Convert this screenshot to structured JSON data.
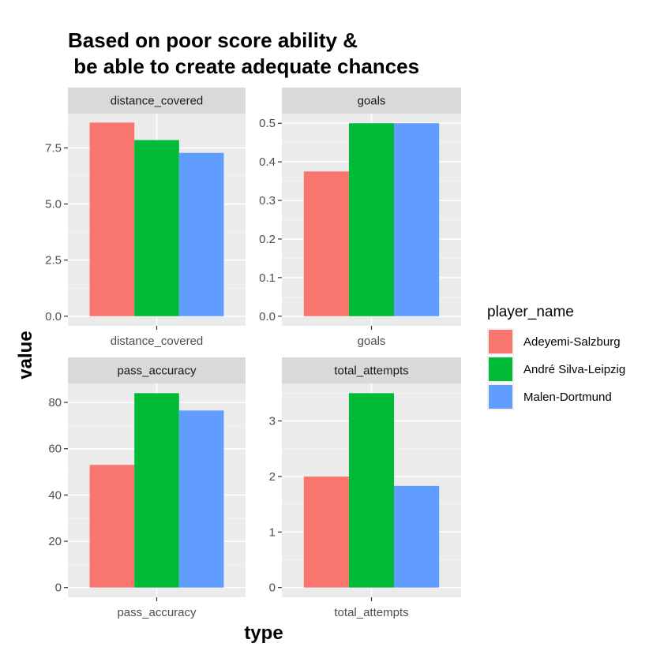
{
  "chart_data": {
    "type": "bar",
    "title_lines": [
      "Based on poor score ability &",
      " be able to create adequate chances"
    ],
    "xlabel": "type",
    "ylabel": "value",
    "legend": {
      "title": "player_name",
      "position": "right",
      "entries": [
        {
          "name": "Adeyemi-Salzburg",
          "color": "#F8766D"
        },
        {
          "name": "André Silva-Leipzig",
          "color": "#00BA38"
        },
        {
          "name": "Malen-Dortmund",
          "color": "#619CFF"
        }
      ]
    },
    "grid": true,
    "facets": [
      {
        "strip": "distance_covered",
        "category": "distance_covered",
        "ylim": [
          -0.43,
          9.03
        ],
        "yticks": [
          0,
          2.5,
          5,
          7.5
        ],
        "ytick_labels": [
          "0.0",
          "2.5",
          "5.0",
          "7.5"
        ],
        "series": [
          {
            "name": "Adeyemi-Salzburg",
            "value": 8.63
          },
          {
            "name": "André Silva-Leipzig",
            "value": 7.85
          },
          {
            "name": "Malen-Dortmund",
            "value": 7.28
          }
        ]
      },
      {
        "strip": "goals",
        "category": "goals",
        "ylim": [
          -0.025,
          0.525
        ],
        "yticks": [
          0,
          0.1,
          0.2,
          0.3,
          0.4,
          0.5
        ],
        "ytick_labels": [
          "0.0",
          "0.1",
          "0.2",
          "0.3",
          "0.4",
          "0.5"
        ],
        "series": [
          {
            "name": "Adeyemi-Salzburg",
            "value": 0.375
          },
          {
            "name": "André Silva-Leipzig",
            "value": 0.5
          },
          {
            "name": "Malen-Dortmund",
            "value": 0.5
          }
        ]
      },
      {
        "strip": "pass_accuracy",
        "category": "pass_accuracy",
        "ylim": [
          -4.2,
          88.2
        ],
        "yticks": [
          0,
          20,
          40,
          60,
          80
        ],
        "ytick_labels": [
          "0",
          "20",
          "40",
          "60",
          "80"
        ],
        "series": [
          {
            "name": "Adeyemi-Salzburg",
            "value": 53
          },
          {
            "name": "André Silva-Leipzig",
            "value": 84
          },
          {
            "name": "Malen-Dortmund",
            "value": 76.5
          }
        ]
      },
      {
        "strip": "total_attempts",
        "category": "total_attempts",
        "ylim": [
          -0.175,
          3.675
        ],
        "yticks": [
          0,
          1,
          2,
          3
        ],
        "ytick_labels": [
          "0",
          "1",
          "2",
          "3"
        ],
        "series": [
          {
            "name": "Adeyemi-Salzburg",
            "value": 2.0
          },
          {
            "name": "André Silva-Leipzig",
            "value": 3.5
          },
          {
            "name": "Malen-Dortmund",
            "value": 1.83
          }
        ]
      }
    ]
  }
}
